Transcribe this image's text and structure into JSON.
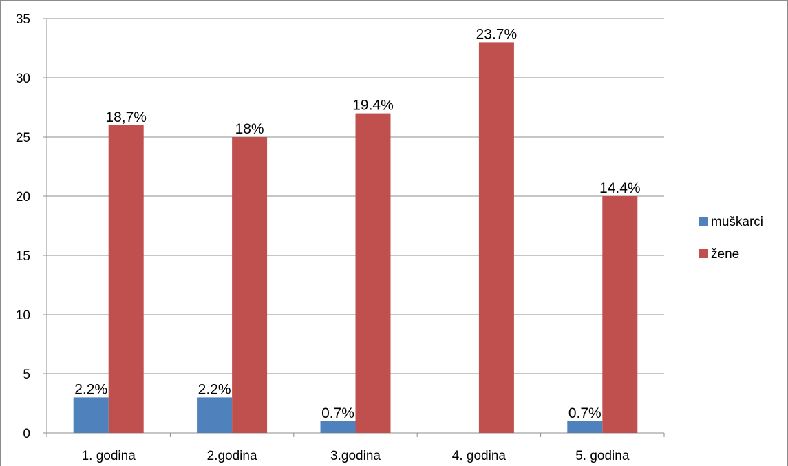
{
  "chart_data": {
    "type": "bar",
    "categories": [
      "1. godina",
      "2.godina",
      "3.godina",
      "4. godina",
      "5. godina"
    ],
    "series": [
      {
        "name": "muškarci",
        "values": [
          3,
          3,
          1,
          0,
          1
        ],
        "data_labels": [
          "2.2%",
          "2.2%",
          "0.7%",
          "",
          "0.7%"
        ],
        "color": "#4f81bd"
      },
      {
        "name": "žene",
        "values": [
          26,
          25,
          27,
          33,
          20
        ],
        "data_labels": [
          "18,7%",
          "18%",
          "19.4%",
          "23.7%",
          "14.4%"
        ],
        "color": "#c0504d"
      }
    ],
    "title": "",
    "xlabel": "",
    "ylabel": "",
    "ylim": [
      0,
      35
    ],
    "yticks": [
      "0",
      "5",
      "10",
      "15",
      "20",
      "25",
      "30",
      "35"
    ],
    "grid": true,
    "legend_position": "right"
  }
}
